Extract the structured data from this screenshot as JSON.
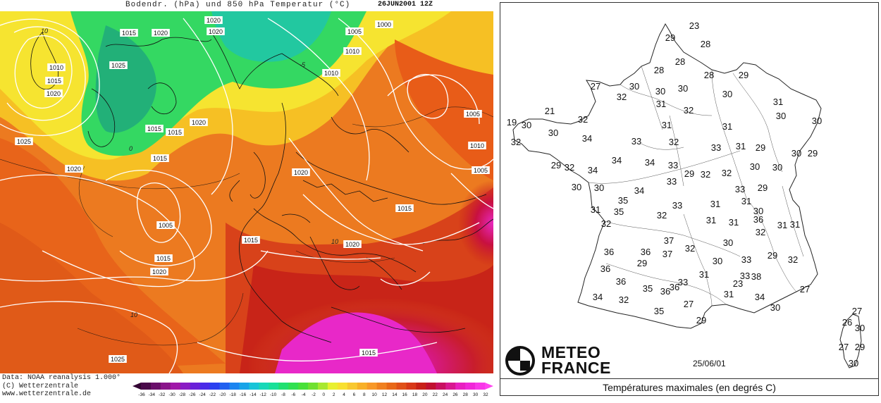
{
  "left_map": {
    "title": "Bodendr. (hPa) und 850 hPa Temperatur (°C)",
    "date": "26JUN2001 12Z",
    "credits": [
      "Data: NOAA reanalysis 1.000°",
      "(C) Wetterzentrale",
      "www.wetterzentrale.de"
    ],
    "colorbar": {
      "ticks": [
        "-36",
        "-34",
        "-32",
        "-30",
        "-28",
        "-26",
        "-24",
        "-22",
        "-20",
        "-18",
        "-16",
        "-14",
        "-12",
        "-10",
        "-8",
        "-6",
        "-4",
        "-2",
        "0",
        "2",
        "4",
        "6",
        "8",
        "10",
        "12",
        "14",
        "16",
        "18",
        "20",
        "22",
        "24",
        "26",
        "28",
        "30",
        "32"
      ],
      "colors": [
        "#4a0a4a",
        "#6a0f6a",
        "#8a148a",
        "#a018a8",
        "#8a1cc4",
        "#6a20d8",
        "#4a2ae8",
        "#2a40f0",
        "#2060f0",
        "#1c84f0",
        "#18a4e8",
        "#18c4d8",
        "#18d8b8",
        "#18e098",
        "#20e070",
        "#30e050",
        "#48e038",
        "#70e030",
        "#a8e830",
        "#e8f030",
        "#f8e030",
        "#f8c830",
        "#f8b028",
        "#f89828",
        "#f08020",
        "#e86818",
        "#e05018",
        "#d83818",
        "#c82018",
        "#c01030",
        "#c81060",
        "#d81890",
        "#e820c0",
        "#f028d8",
        "#f838e8"
      ],
      "arrow_colors": [
        "#330533",
        "#ff44f0"
      ]
    },
    "isobar_labels": [
      "1015",
      "1020",
      "1020",
      "1020",
      "1005",
      "1000",
      "1010",
      "1010",
      "1015",
      "1020",
      "1025",
      "1015",
      "1015",
      "1020",
      "1010",
      "1005",
      "1010",
      "1005",
      "1025",
      "1020",
      "1020",
      "1015",
      "1015",
      "1005",
      "1015",
      "1020",
      "1015",
      "1020",
      "1025",
      "1015"
    ],
    "isotherm_labels": [
      "10",
      "-5",
      "0",
      "10",
      "10"
    ]
  },
  "right_map": {
    "observations": [
      {
        "value": "23",
        "color": "#111"
      },
      {
        "value": "29",
        "color": "#111"
      },
      {
        "value": "28",
        "color": "#111"
      },
      {
        "value": "28",
        "color": "#111"
      },
      {
        "value": "28",
        "color": "#111"
      },
      {
        "value": "28",
        "color": "#111"
      },
      {
        "value": "29",
        "color": "#111"
      },
      {
        "value": "27",
        "color": "#111"
      },
      {
        "value": "30",
        "color": "#111"
      },
      {
        "value": "32",
        "color": "#111"
      },
      {
        "value": "30",
        "color": "#111"
      },
      {
        "value": "30",
        "color": "#111"
      },
      {
        "value": "31",
        "color": "#111"
      },
      {
        "value": "30",
        "color": "#111"
      },
      {
        "value": "31",
        "color": "#111"
      },
      {
        "value": "32",
        "color": "#111"
      },
      {
        "value": "30",
        "color": "#111"
      },
      {
        "value": "21",
        "color": "#111"
      },
      {
        "value": "32",
        "color": "#111"
      },
      {
        "value": "19",
        "color": "#111"
      },
      {
        "value": "30",
        "color": "#111"
      },
      {
        "value": "30",
        "color": "#111"
      },
      {
        "value": "32",
        "color": "#111"
      },
      {
        "value": "31",
        "color": "#111"
      },
      {
        "value": "31",
        "color": "#111"
      },
      {
        "value": "30",
        "color": "#111"
      },
      {
        "value": "34",
        "color": "#111"
      },
      {
        "value": "33",
        "color": "#111"
      },
      {
        "value": "32",
        "color": "#111"
      },
      {
        "value": "33",
        "color": "#111"
      },
      {
        "value": "31",
        "color": "#111"
      },
      {
        "value": "29",
        "color": "#111"
      },
      {
        "value": "30",
        "color": "#111"
      },
      {
        "value": "29",
        "color": "#111"
      },
      {
        "value": "29",
        "color": "#111"
      },
      {
        "value": "32",
        "color": "#111"
      },
      {
        "value": "34",
        "color": "#111"
      },
      {
        "value": "34",
        "color": "#111"
      },
      {
        "value": "33",
        "color": "#111"
      },
      {
        "value": "29",
        "color": "#111"
      },
      {
        "value": "34",
        "color": "#111"
      },
      {
        "value": "33",
        "color": "#111"
      },
      {
        "value": "32",
        "color": "#111"
      },
      {
        "value": "32",
        "color": "#111"
      },
      {
        "value": "30",
        "color": "#111"
      },
      {
        "value": "30",
        "color": "#111"
      },
      {
        "value": "30",
        "color": "#111"
      },
      {
        "value": "30",
        "color": "#111"
      },
      {
        "value": "35",
        "color": "#111"
      },
      {
        "value": "34",
        "color": "#111"
      },
      {
        "value": "33",
        "color": "#111"
      },
      {
        "value": "29",
        "color": "#111"
      },
      {
        "value": "31",
        "color": "#111"
      },
      {
        "value": "35",
        "color": "#111"
      },
      {
        "value": "31",
        "color": "#111"
      },
      {
        "value": "30",
        "color": "#111"
      },
      {
        "value": "33",
        "color": "#111"
      },
      {
        "value": "31",
        "color": "#111"
      },
      {
        "value": "31",
        "color": "#111"
      },
      {
        "value": "32",
        "color": "#111"
      },
      {
        "value": "32",
        "color": "#111"
      },
      {
        "value": "31",
        "color": "#111"
      },
      {
        "value": "36",
        "color": "#111"
      },
      {
        "value": "31",
        "color": "#111"
      },
      {
        "value": "32",
        "color": "#111"
      },
      {
        "value": "31",
        "color": "#111"
      },
      {
        "value": "37",
        "color": "#111"
      },
      {
        "value": "30",
        "color": "#111"
      },
      {
        "value": "36",
        "color": "#111"
      },
      {
        "value": "36",
        "color": "#111"
      },
      {
        "value": "37",
        "color": "#111"
      },
      {
        "value": "32",
        "color": "#111"
      },
      {
        "value": "33",
        "color": "#111"
      },
      {
        "value": "29",
        "color": "#111"
      },
      {
        "value": "32",
        "color": "#111"
      },
      {
        "value": "30",
        "color": "#111"
      },
      {
        "value": "36",
        "color": "#111"
      },
      {
        "value": "29",
        "color": "#111"
      },
      {
        "value": "31",
        "color": "#111"
      },
      {
        "value": "36",
        "color": "#111"
      },
      {
        "value": "33",
        "color": "#111"
      },
      {
        "value": "38",
        "color": "#111"
      },
      {
        "value": "36",
        "color": "#111"
      },
      {
        "value": "35",
        "color": "#111"
      },
      {
        "value": "36",
        "color": "#111"
      },
      {
        "value": "33",
        "color": "#111"
      },
      {
        "value": "23",
        "color": "#111"
      },
      {
        "value": "34",
        "color": "#111"
      },
      {
        "value": "32",
        "color": "#111"
      },
      {
        "value": "27",
        "color": "#111"
      },
      {
        "value": "31",
        "color": "#111"
      },
      {
        "value": "34",
        "color": "#111"
      },
      {
        "value": "27",
        "color": "#111"
      },
      {
        "value": "35",
        "color": "#111"
      },
      {
        "value": "30",
        "color": "#111"
      },
      {
        "value": "29",
        "color": "#111"
      },
      {
        "value": "27",
        "color": "#111"
      },
      {
        "value": "26",
        "color": "#111"
      },
      {
        "value": "30",
        "color": "#111"
      },
      {
        "value": "27",
        "color": "#111"
      },
      {
        "value": "29",
        "color": "#111"
      },
      {
        "value": "30",
        "color": "#111"
      }
    ],
    "logo_line1": "METEO",
    "logo_line2": "FRANCE",
    "date": "25/06/01",
    "caption": "Températures maximales (en degrés C)"
  }
}
